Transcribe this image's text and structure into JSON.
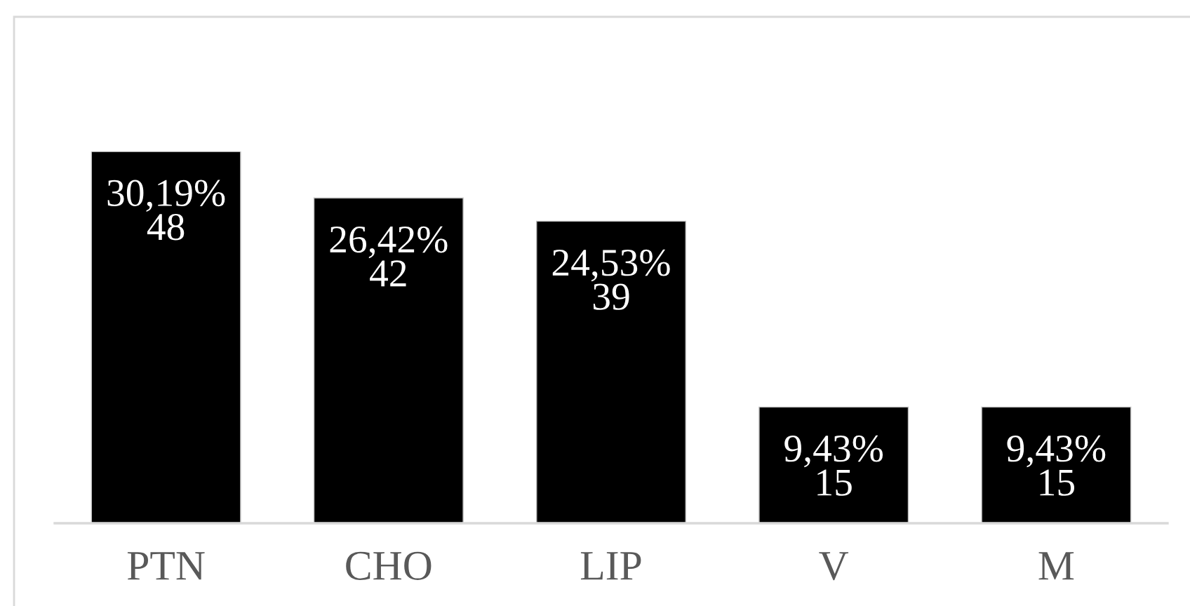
{
  "chart_data": {
    "type": "bar",
    "categories": [
      "PTN",
      "CHO",
      "LIP",
      "V",
      "M"
    ],
    "values": [
      48,
      42,
      39,
      15,
      15
    ],
    "color": "#000000",
    "value_labels": [
      "30,19%\n48",
      "26,42%\n42",
      "24,53%\n39",
      "9,43%\n15",
      "9,43%\n15"
    ],
    "tick_labels": "x"
  }
}
